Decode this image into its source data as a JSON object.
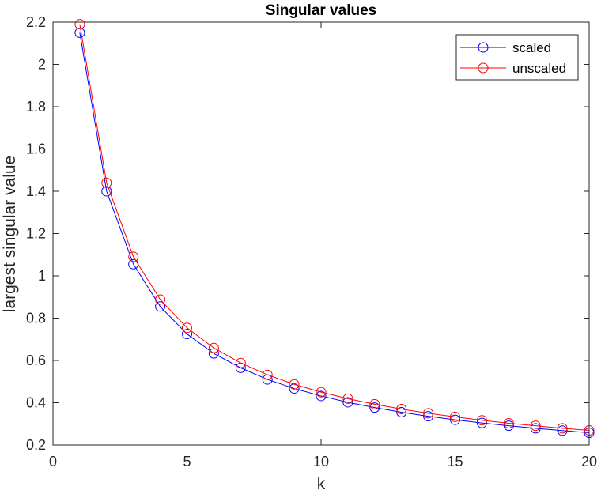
{
  "chart_data": {
    "type": "line",
    "title": "Singular values",
    "xlabel": "k",
    "ylabel": "largest singular value",
    "xlim": [
      0,
      20
    ],
    "ylim": [
      0.2,
      2.2
    ],
    "xticks": [
      "0",
      "5",
      "10",
      "15",
      "20"
    ],
    "yticks": [
      "0.2",
      "0.4",
      "0.6",
      "0.8",
      "1",
      "1.2",
      "1.4",
      "1.6",
      "1.8",
      "2",
      "2.2"
    ],
    "grid": false,
    "legend_position": "top-right",
    "x": [
      1,
      2,
      3,
      4,
      5,
      6,
      7,
      8,
      9,
      10,
      11,
      12,
      13,
      14,
      15,
      16,
      17,
      18,
      19,
      20
    ],
    "series": [
      {
        "name": "scaled",
        "color": "#0000ff",
        "marker": "circle",
        "values": [
          2.15,
          1.4,
          1.055,
          0.855,
          0.725,
          0.633,
          0.565,
          0.51,
          0.467,
          0.432,
          0.402,
          0.377,
          0.355,
          0.336,
          0.319,
          0.304,
          0.291,
          0.279,
          0.268,
          0.258
        ]
      },
      {
        "name": "unscaled",
        "color": "#ff0000",
        "marker": "circle",
        "values": [
          2.19,
          1.44,
          1.09,
          0.888,
          0.754,
          0.659,
          0.588,
          0.532,
          0.487,
          0.45,
          0.419,
          0.393,
          0.37,
          0.35,
          0.333,
          0.317,
          0.303,
          0.291,
          0.279,
          0.269
        ]
      }
    ]
  }
}
